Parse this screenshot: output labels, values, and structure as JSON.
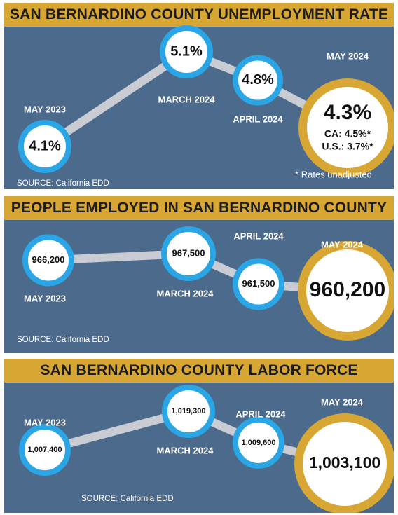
{
  "colors": {
    "panel_bg": "#4b6a8c",
    "banner": "#d8a633",
    "line": "#c9cdd3",
    "circle_ring": "#2aa6e6",
    "highlight_ring": "#d8a633"
  },
  "chart_data": [
    {
      "type": "line",
      "title": "SAN BERNARDINO COUNTY UNEMPLOYMENT RATE",
      "categories": [
        "MAY 2023",
        "MARCH 2024",
        "APRIL 2024",
        "MAY 2024"
      ],
      "values": [
        4.1,
        5.1,
        4.8,
        4.3
      ],
      "value_labels": [
        "4.1%",
        "5.1%",
        "4.8%",
        "4.3%"
      ],
      "extra_notes": [
        "CA: 4.5%*",
        "U.S.: 3.7%*"
      ],
      "footnote": "* Rates unadjusted",
      "source": "SOURCE: California EDD"
    },
    {
      "type": "line",
      "title": "PEOPLE EMPLOYED IN SAN BERNARDINO COUNTY",
      "categories": [
        "MAY 2023",
        "MARCH 2024",
        "APRIL 2024",
        "MAY 2024"
      ],
      "values": [
        966200,
        967500,
        961500,
        960200
      ],
      "value_labels": [
        "966,200",
        "967,500",
        "961,500",
        "960,200"
      ],
      "source": "SOURCE: California EDD"
    },
    {
      "type": "line",
      "title": "SAN BERNARDINO COUNTY LABOR FORCE",
      "categories": [
        "MAY 2023",
        "MARCH 2024",
        "APRIL 2024",
        "MAY 2024"
      ],
      "values": [
        1007400,
        1019300,
        1009600,
        1003100
      ],
      "value_labels": [
        "1,007,400",
        "1,019,300",
        "1,009,600",
        "1,003,100"
      ],
      "source": "SOURCE: California EDD"
    }
  ]
}
